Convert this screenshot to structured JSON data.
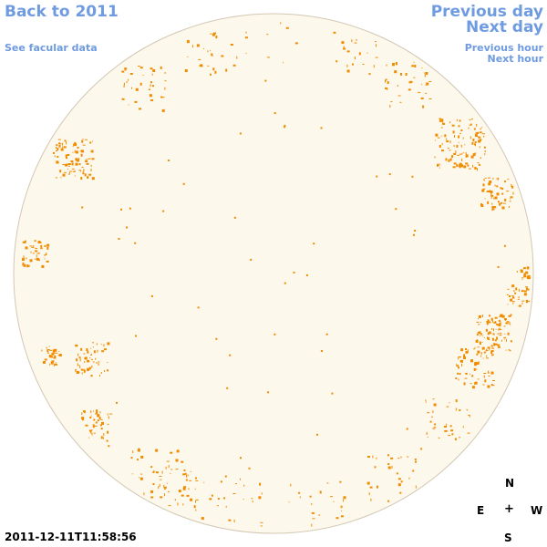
{
  "nav": {
    "back_label": "Back to 2011",
    "facular_label": "See facular data",
    "prev_day_label": "Previous day",
    "next_day_label": "Next day",
    "prev_hour_label": "Previous hour",
    "next_hour_label": "Next hour"
  },
  "timestamp": "2011-12-11T11:58:56",
  "compass": {
    "north": "N",
    "east": "E",
    "center": "+",
    "west": "W",
    "south": "S"
  },
  "colors": {
    "link": "#6f9be0",
    "disk_fill": "#fdf8ec",
    "disk_border": "#d2c7b3",
    "facula": "#f08c00"
  }
}
